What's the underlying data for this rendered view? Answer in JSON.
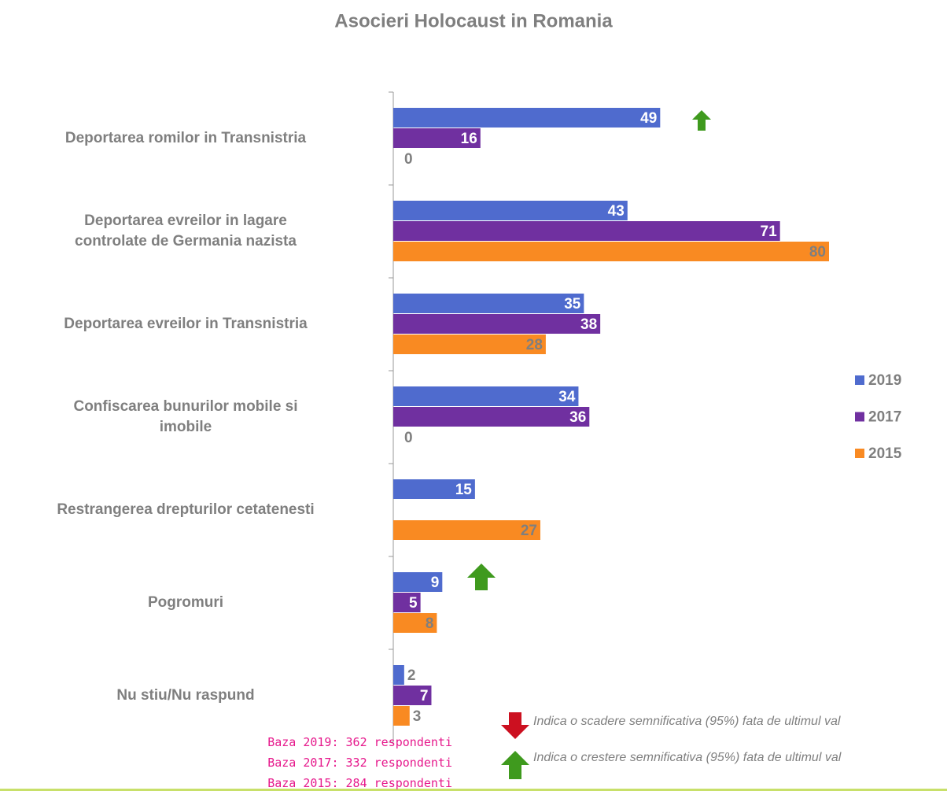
{
  "chart_data": {
    "type": "bar",
    "orientation": "horizontal",
    "title": "Asocieri Holocaust in Romania",
    "categories": [
      "Deportarea romilor in Transnistria",
      "Deportarea evreilor in lagare\ncontrolate de Germania nazista",
      "Deportarea evreilor in Transnistria",
      "Confiscarea bunurilor mobile si\nimobile",
      "Restrangerea drepturilor cetatenesti",
      "Pogromuri",
      "Nu stiu/Nu raspund"
    ],
    "series": [
      {
        "name": "2019",
        "color": "#4f6bce",
        "label_color": "#ffffff",
        "values": [
          49,
          43,
          35,
          34,
          15,
          9,
          2
        ]
      },
      {
        "name": "2017",
        "color": "#7030a0",
        "label_color": "#ffffff",
        "values": [
          16,
          71,
          38,
          36,
          null,
          5,
          7
        ]
      },
      {
        "name": "2015",
        "color": "#f98a22",
        "label_color": "#7f7f7f",
        "values": [
          0,
          80,
          28,
          0,
          27,
          8,
          3
        ]
      }
    ],
    "notes": [
      "Indica o scadere semnificativa (95%) fata de ultimul val",
      "Indica o crestere semnificativa (95%) fata de ultimul val"
    ],
    "bases": [
      "Baza 2019: 362 respondenti",
      "Baza 2017: 332 respondenti",
      "Baza 2015: 284 respondenti"
    ]
  }
}
